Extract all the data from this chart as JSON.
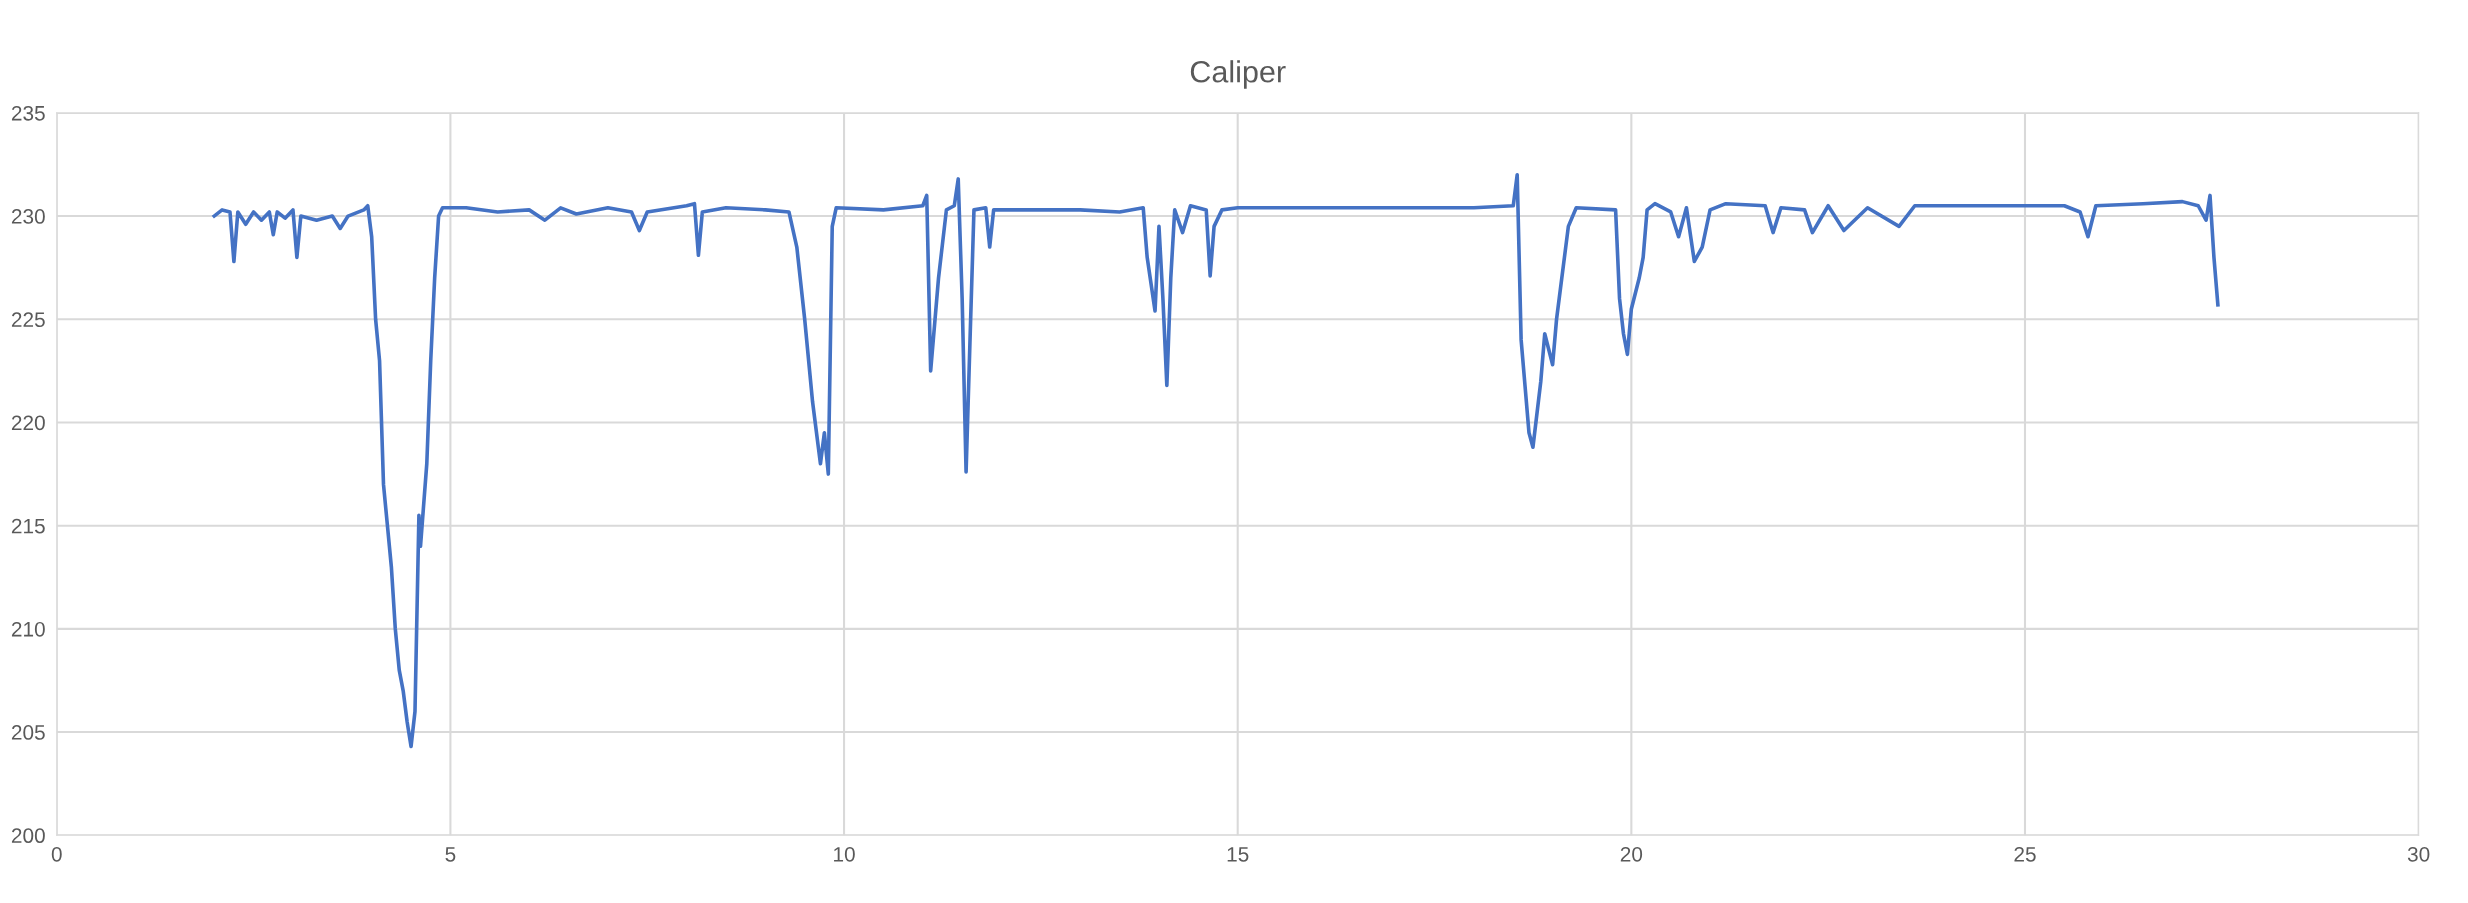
{
  "chart_data": {
    "type": "line",
    "title": "Caliper",
    "xlim": [
      0,
      30
    ],
    "xticks": [
      0,
      5,
      10,
      15,
      20,
      25,
      30
    ],
    "ylim": [
      200,
      235
    ],
    "yticks": [
      200,
      205,
      210,
      215,
      220,
      225,
      230,
      235
    ],
    "grid": true,
    "marker": "none",
    "line_style": "solid",
    "series": [
      {
        "color": "#4472c4",
        "x": [
          2.0,
          2.1,
          2.2,
          2.25,
          2.3,
          2.4,
          2.5,
          2.6,
          2.7,
          2.75,
          2.8,
          2.9,
          3.0,
          3.05,
          3.1,
          3.3,
          3.5,
          3.6,
          3.7,
          3.9,
          3.95,
          4.0,
          4.05,
          4.1,
          4.15,
          4.2,
          4.25,
          4.3,
          4.35,
          4.4,
          4.45,
          4.5,
          4.55,
          4.6,
          4.62,
          4.7,
          4.75,
          4.8,
          4.85,
          4.9,
          5.2,
          5.6,
          6.0,
          6.2,
          6.4,
          6.6,
          7.0,
          7.3,
          7.4,
          7.5,
          8.0,
          8.1,
          8.15,
          8.2,
          8.5,
          9.0,
          9.3,
          9.4,
          9.5,
          9.6,
          9.7,
          9.75,
          9.8,
          9.85,
          9.9,
          10.5,
          11.0,
          11.05,
          11.1,
          11.2,
          11.3,
          11.4,
          11.45,
          11.5,
          11.55,
          11.6,
          11.65,
          11.8,
          11.85,
          11.9,
          12.5,
          13.0,
          13.5,
          13.8,
          13.85,
          13.95,
          14.0,
          14.05,
          14.1,
          14.15,
          14.2,
          14.3,
          14.4,
          14.6,
          14.65,
          14.7,
          14.8,
          15.0,
          16.0,
          17.0,
          18.0,
          18.5,
          18.55,
          18.6,
          18.7,
          18.75,
          18.85,
          18.9,
          19.0,
          19.05,
          19.2,
          19.3,
          19.8,
          19.85,
          19.9,
          19.95,
          20.0,
          20.1,
          20.15,
          20.2,
          20.3,
          20.5,
          20.6,
          20.7,
          20.8,
          20.9,
          21.0,
          21.2,
          21.7,
          21.8,
          21.9,
          22.2,
          22.3,
          22.5,
          22.7,
          23.0,
          23.4,
          23.6,
          24.0,
          24.5,
          25.0,
          25.5,
          25.7,
          25.8,
          25.9,
          26.5,
          27.0,
          27.2,
          27.3,
          27.35,
          27.4,
          27.45
        ],
        "values": [
          230.0,
          230.3,
          230.2,
          227.8,
          230.2,
          229.6,
          230.2,
          229.8,
          230.2,
          229.1,
          230.2,
          229.9,
          230.3,
          228.0,
          230.0,
          229.8,
          230.0,
          229.4,
          230.0,
          230.3,
          230.5,
          229.0,
          225,
          223,
          217,
          215,
          213,
          210,
          208,
          207,
          205.5,
          204.3,
          206,
          215.5,
          214,
          218,
          223,
          227,
          230,
          230.4,
          230.4,
          230.2,
          230.3,
          229.8,
          230.4,
          230.1,
          230.4,
          230.2,
          229.3,
          230.2,
          230.5,
          230.6,
          228.1,
          230.2,
          230.4,
          230.3,
          230.2,
          228.5,
          225,
          221,
          218,
          219.5,
          217.5,
          229.5,
          230.4,
          230.3,
          230.5,
          231,
          222.5,
          227,
          230.3,
          230.5,
          231.8,
          226,
          217.6,
          224,
          230.3,
          230.4,
          228.5,
          230.3,
          230.3,
          230.3,
          230.2,
          230.4,
          228,
          225.4,
          229.5,
          226,
          221.8,
          227,
          230.3,
          229.2,
          230.5,
          230.3,
          227.1,
          229.5,
          230.3,
          230.4,
          230.4,
          230.4,
          230.4,
          230.5,
          232,
          224,
          219.5,
          218.8,
          222,
          224.3,
          222.8,
          225,
          229.5,
          230.4,
          230.3,
          226,
          224.3,
          223.3,
          225.5,
          227,
          228,
          230.3,
          230.6,
          230.2,
          229,
          230.4,
          227.8,
          228.5,
          230.3,
          230.6,
          230.5,
          229.2,
          230.4,
          230.3,
          229.2,
          230.5,
          229.3,
          230.4,
          229.5,
          230.5,
          230.5,
          230.5,
          230.5,
          230.5,
          230.2,
          229.0,
          230.5,
          230.6,
          230.7,
          230.5,
          229.8,
          231.0,
          228,
          225.7
        ]
      }
    ]
  }
}
